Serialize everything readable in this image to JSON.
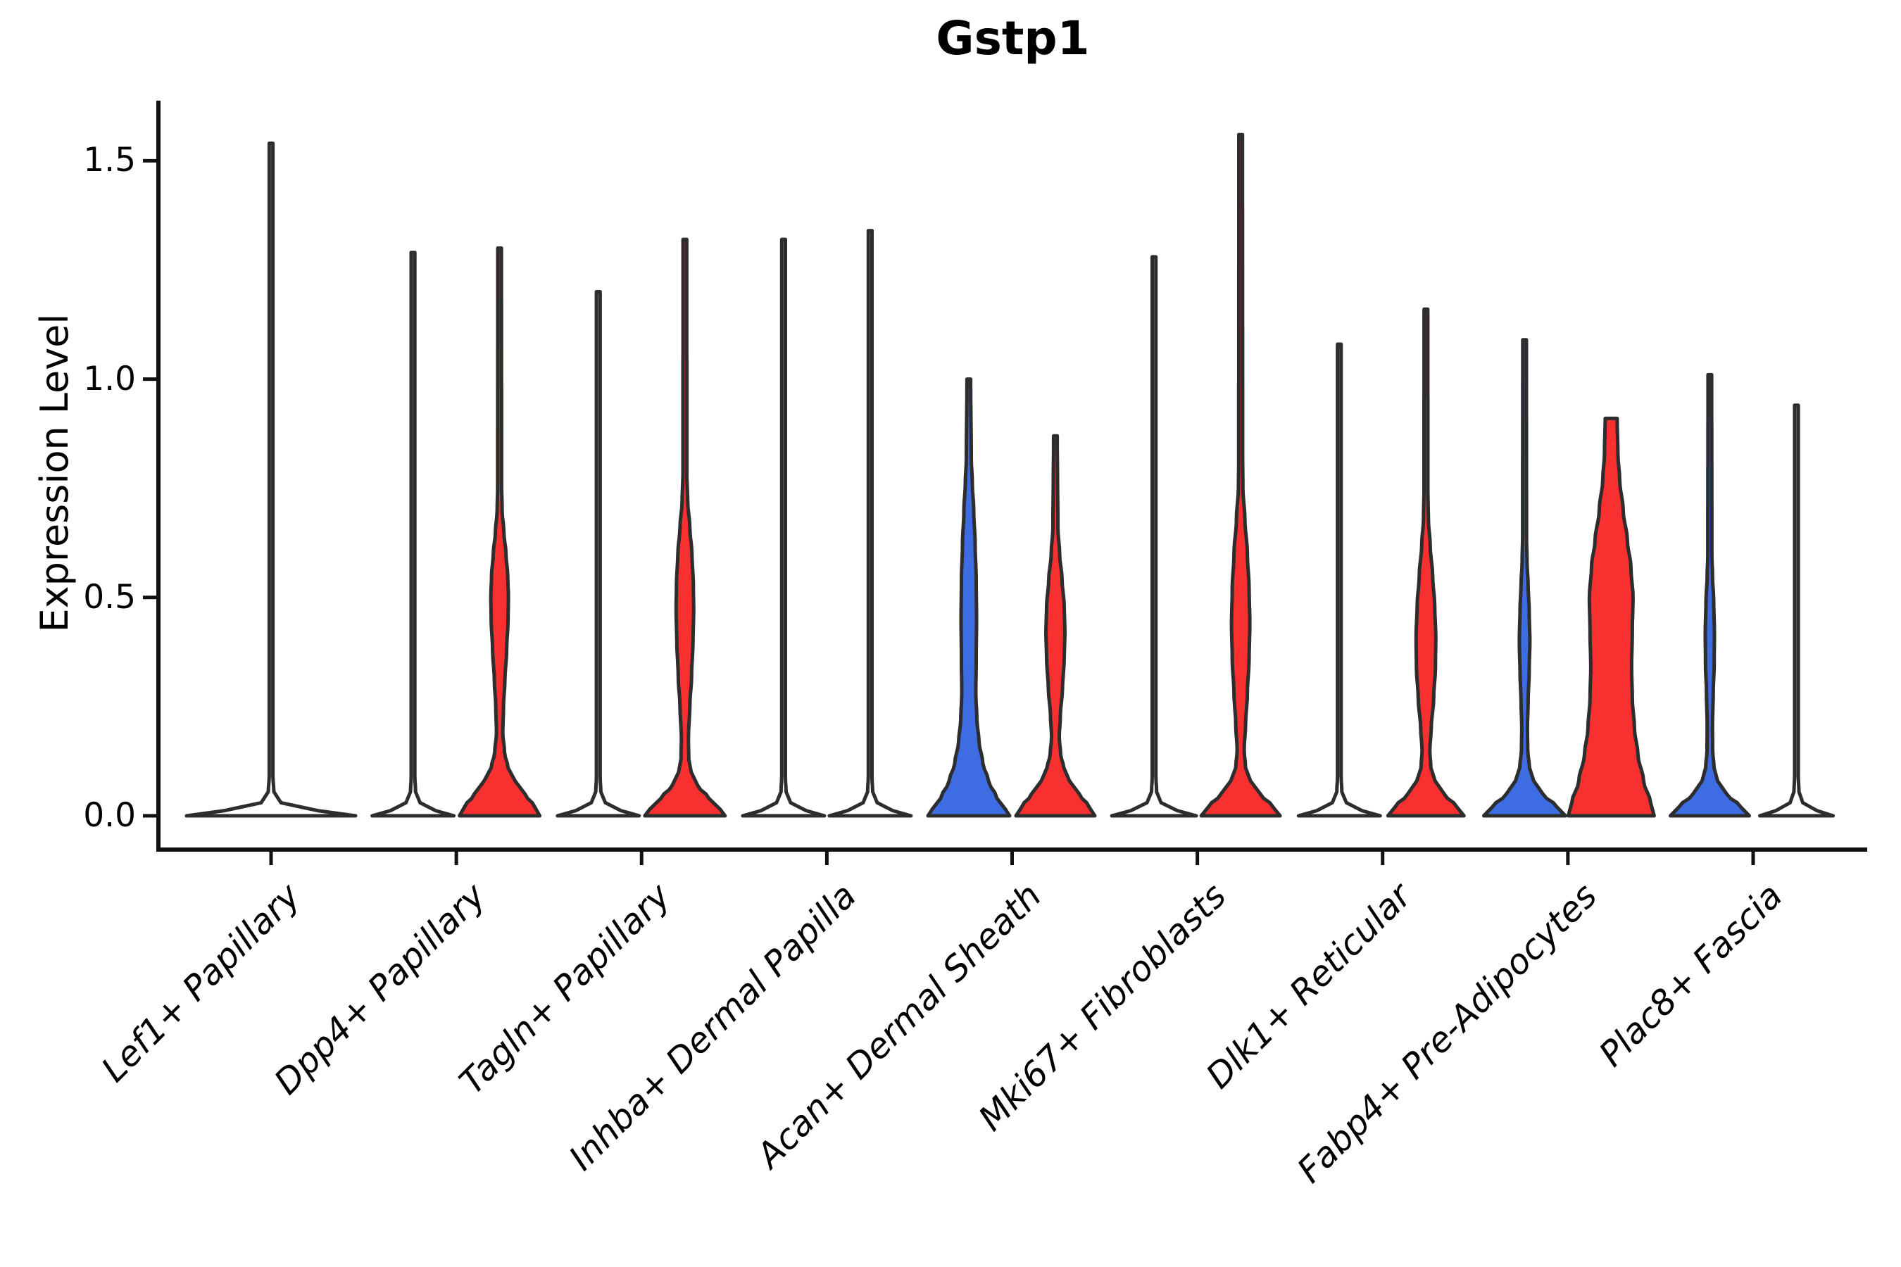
{
  "title": "Gstp1",
  "y_axis": {
    "label": "Expression Level",
    "tick_labels": [
      "0.0",
      "0.5",
      "1.0",
      "1.5"
    ],
    "tick_values": [
      0.0,
      0.5,
      1.0,
      1.5
    ]
  },
  "x_axis": {
    "tick_labels": [
      "Lef1+ Papillary",
      "Dpp4+ Papillary",
      "Tagln+ Papillary",
      "Inhba+ Dermal Papilla",
      "Acan+ Dermal Sheath",
      "Mki67+ Fibroblasts",
      "Dlk1+ Reticular",
      "Fabp4+ Pre-Adipocytes",
      "Plac8+ Fascia"
    ]
  },
  "chart_data": {
    "type": "violin",
    "title": "Gstp1",
    "xlabel": "",
    "ylabel": "Expression Level",
    "ylim": [
      -0.08,
      1.64
    ],
    "yticks": [
      0.0,
      0.5,
      1.0,
      1.5
    ],
    "grid": false,
    "legend": "none",
    "categories": [
      "Lef1+ Papillary",
      "Dpp4+ Papillary",
      "Tagln+ Papillary",
      "Inhba+ Dermal Papilla",
      "Acan+ Dermal Sheath",
      "Mki67+ Fibroblasts",
      "Dlk1+ Reticular",
      "Fabp4+ Pre-Adipocytes",
      "Plac8+ Fascia"
    ],
    "colors": {
      "blue_group": "#3E6CE3",
      "red_group": "#F93030",
      "flat_fill": "#FFFFFF",
      "outline": "#2D2D2D",
      "axis": "#111111"
    },
    "violins": [
      {
        "category_index": 0,
        "category": "Lef1+ Papillary",
        "side": "full",
        "fill": "flat_fill",
        "max_expression": 1.54,
        "clip_top": false,
        "profile": [
          [
            0,
            120
          ],
          [
            0.012,
            66
          ],
          [
            0.03,
            14
          ],
          [
            0.055,
            4
          ],
          [
            0.09,
            2.6
          ],
          [
            1.54,
            2.6
          ]
        ]
      },
      {
        "category_index": 1,
        "category": "Dpp4+ Papillary",
        "side": "left",
        "fill": "flat_fill",
        "max_expression": 1.29,
        "clip_top": false,
        "profile": [
          [
            0,
            58
          ],
          [
            0.012,
            32
          ],
          [
            0.03,
            10
          ],
          [
            0.055,
            3.6
          ],
          [
            0.09,
            2.6
          ],
          [
            1.29,
            2.6
          ]
        ]
      },
      {
        "category_index": 1,
        "category": "Dpp4+ Papillary",
        "side": "right",
        "fill": "red_group",
        "max_expression": 1.3,
        "clip_top": false,
        "profile": [
          [
            0,
            57
          ],
          [
            0.02,
            50
          ],
          [
            0.05,
            36
          ],
          [
            0.08,
            22
          ],
          [
            0.11,
            12
          ],
          [
            0.145,
            7
          ],
          [
            0.19,
            4.5
          ],
          [
            0.25,
            5.5
          ],
          [
            0.31,
            7.5
          ],
          [
            0.38,
            10
          ],
          [
            0.45,
            12
          ],
          [
            0.5,
            12.5
          ],
          [
            0.55,
            11.5
          ],
          [
            0.6,
            9
          ],
          [
            0.65,
            6
          ],
          [
            0.7,
            3.5
          ],
          [
            0.76,
            2.8
          ],
          [
            1.3,
            2.6
          ]
        ]
      },
      {
        "category_index": 2,
        "category": "Tagln+ Papillary",
        "side": "left",
        "fill": "flat_fill",
        "max_expression": 1.2,
        "clip_top": false,
        "profile": [
          [
            0,
            58
          ],
          [
            0.012,
            32
          ],
          [
            0.03,
            10
          ],
          [
            0.055,
            3.6
          ],
          [
            0.09,
            2.6
          ],
          [
            1.2,
            2.6
          ]
        ]
      },
      {
        "category_index": 2,
        "category": "Tagln+ Papillary",
        "side": "right",
        "fill": "red_group",
        "max_expression": 1.32,
        "clip_top": false,
        "profile": [
          [
            0,
            57
          ],
          [
            0.015,
            50
          ],
          [
            0.04,
            34
          ],
          [
            0.07,
            18
          ],
          [
            0.1,
            9
          ],
          [
            0.13,
            5.5
          ],
          [
            0.18,
            5
          ],
          [
            0.25,
            7
          ],
          [
            0.32,
            9.5
          ],
          [
            0.4,
            11.5
          ],
          [
            0.47,
            12.5
          ],
          [
            0.53,
            12
          ],
          [
            0.6,
            10
          ],
          [
            0.66,
            7
          ],
          [
            0.72,
            4
          ],
          [
            0.78,
            2.8
          ],
          [
            1.32,
            2.6
          ]
        ]
      },
      {
        "category_index": 3,
        "category": "Inhba+ Dermal Papilla",
        "side": "left",
        "fill": "flat_fill",
        "max_expression": 1.32,
        "clip_top": false,
        "profile": [
          [
            0,
            58
          ],
          [
            0.012,
            32
          ],
          [
            0.03,
            10
          ],
          [
            0.055,
            3.6
          ],
          [
            0.09,
            2.6
          ],
          [
            1.32,
            2.6
          ]
        ]
      },
      {
        "category_index": 3,
        "category": "Inhba+ Dermal Papilla",
        "side": "right",
        "fill": "flat_fill",
        "max_expression": 1.34,
        "clip_top": false,
        "profile": [
          [
            0,
            58
          ],
          [
            0.012,
            32
          ],
          [
            0.03,
            10
          ],
          [
            0.055,
            3.6
          ],
          [
            0.09,
            2.6
          ],
          [
            1.34,
            2.6
          ]
        ]
      },
      {
        "category_index": 4,
        "category": "Acan+ Dermal Sheath",
        "side": "left",
        "fill": "blue_group",
        "max_expression": 1.0,
        "clip_top": false,
        "profile": [
          [
            0,
            58
          ],
          [
            0.015,
            52
          ],
          [
            0.04,
            40
          ],
          [
            0.08,
            28
          ],
          [
            0.12,
            20
          ],
          [
            0.17,
            14.5
          ],
          [
            0.22,
            11.5
          ],
          [
            0.28,
            10
          ],
          [
            0.36,
            10.5
          ],
          [
            0.45,
            11
          ],
          [
            0.54,
            10.5
          ],
          [
            0.62,
            9
          ],
          [
            0.7,
            7
          ],
          [
            0.76,
            5
          ],
          [
            0.82,
            3.5
          ],
          [
            1.0,
            2.6
          ]
        ]
      },
      {
        "category_index": 4,
        "category": "Acan+ Dermal Sheath",
        "side": "right",
        "fill": "red_group",
        "max_expression": 0.87,
        "clip_top": false,
        "profile": [
          [
            0,
            56
          ],
          [
            0.02,
            48
          ],
          [
            0.05,
            34
          ],
          [
            0.08,
            20
          ],
          [
            0.11,
            12
          ],
          [
            0.14,
            7.5
          ],
          [
            0.18,
            5.5
          ],
          [
            0.23,
            7
          ],
          [
            0.29,
            10
          ],
          [
            0.36,
            12.5
          ],
          [
            0.42,
            13.5
          ],
          [
            0.48,
            12.5
          ],
          [
            0.54,
            9.5
          ],
          [
            0.6,
            6
          ],
          [
            0.66,
            3.5
          ],
          [
            0.87,
            2.6
          ]
        ]
      },
      {
        "category_index": 5,
        "category": "Mki67+ Fibroblasts",
        "side": "left",
        "fill": "flat_fill",
        "max_expression": 1.28,
        "clip_top": false,
        "profile": [
          [
            0,
            60
          ],
          [
            0.012,
            33
          ],
          [
            0.03,
            10
          ],
          [
            0.055,
            3.6
          ],
          [
            0.09,
            2.6
          ],
          [
            1.28,
            2.6
          ]
        ]
      },
      {
        "category_index": 5,
        "category": "Mki67+ Fibroblasts",
        "side": "right",
        "fill": "red_group",
        "max_expression": 1.56,
        "clip_top": false,
        "profile": [
          [
            0,
            56
          ],
          [
            0.02,
            46
          ],
          [
            0.05,
            28
          ],
          [
            0.08,
            14
          ],
          [
            0.11,
            7
          ],
          [
            0.15,
            5
          ],
          [
            0.21,
            7
          ],
          [
            0.28,
            9.5
          ],
          [
            0.36,
            12
          ],
          [
            0.44,
            13
          ],
          [
            0.52,
            12
          ],
          [
            0.6,
            9.5
          ],
          [
            0.68,
            6
          ],
          [
            0.75,
            3.2
          ],
          [
            0.82,
            2.8
          ],
          [
            1.56,
            2.6
          ]
        ]
      },
      {
        "category_index": 6,
        "category": "Dlk1+ Reticular",
        "side": "left",
        "fill": "flat_fill",
        "max_expression": 1.08,
        "clip_top": false,
        "profile": [
          [
            0,
            58
          ],
          [
            0.012,
            32
          ],
          [
            0.03,
            10
          ],
          [
            0.055,
            3.6
          ],
          [
            0.09,
            2.6
          ],
          [
            1.08,
            2.6
          ]
        ]
      },
      {
        "category_index": 6,
        "category": "Dlk1+ Reticular",
        "side": "right",
        "fill": "red_group",
        "max_expression": 1.16,
        "clip_top": false,
        "profile": [
          [
            0,
            54
          ],
          [
            0.02,
            44
          ],
          [
            0.05,
            26
          ],
          [
            0.08,
            13
          ],
          [
            0.11,
            7
          ],
          [
            0.15,
            5.5
          ],
          [
            0.2,
            7.5
          ],
          [
            0.27,
            11
          ],
          [
            0.34,
            13.5
          ],
          [
            0.41,
            14
          ],
          [
            0.48,
            12.5
          ],
          [
            0.55,
            9.5
          ],
          [
            0.62,
            6
          ],
          [
            0.68,
            3.5
          ],
          [
            0.74,
            2.8
          ],
          [
            1.16,
            2.6
          ]
        ]
      },
      {
        "category_index": 7,
        "category": "Fabp4+ Pre-Adipocytes",
        "side": "left",
        "fill": "blue_group",
        "max_expression": 1.09,
        "clip_top": false,
        "profile": [
          [
            0,
            58
          ],
          [
            0.02,
            46
          ],
          [
            0.05,
            26
          ],
          [
            0.08,
            13
          ],
          [
            0.11,
            7
          ],
          [
            0.15,
            4.5
          ],
          [
            0.2,
            4
          ],
          [
            0.26,
            5
          ],
          [
            0.33,
            6.5
          ],
          [
            0.4,
            7.5
          ],
          [
            0.47,
            6.5
          ],
          [
            0.53,
            5
          ],
          [
            0.58,
            3.5
          ],
          [
            0.64,
            2.8
          ],
          [
            1.09,
            2.6
          ]
        ]
      },
      {
        "category_index": 7,
        "category": "Fabp4+ Pre-Adipocytes",
        "side": "right",
        "fill": "red_group",
        "max_expression": 0.91,
        "clip_top": true,
        "profile": [
          [
            0,
            61
          ],
          [
            0.03,
            56
          ],
          [
            0.08,
            46
          ],
          [
            0.14,
            38
          ],
          [
            0.2,
            33
          ],
          [
            0.27,
            30
          ],
          [
            0.34,
            29
          ],
          [
            0.42,
            30
          ],
          [
            0.5,
            31
          ],
          [
            0.57,
            28
          ],
          [
            0.63,
            23
          ],
          [
            0.7,
            17
          ],
          [
            0.77,
            12
          ],
          [
            0.83,
            9.5
          ],
          [
            0.91,
            8.5
          ]
        ]
      },
      {
        "category_index": 8,
        "category": "Plac8+ Fascia",
        "side": "left",
        "fill": "blue_group",
        "max_expression": 1.01,
        "clip_top": false,
        "profile": [
          [
            0,
            56
          ],
          [
            0.02,
            44
          ],
          [
            0.05,
            24
          ],
          [
            0.08,
            11
          ],
          [
            0.11,
            6
          ],
          [
            0.15,
            4
          ],
          [
            0.21,
            3.8
          ],
          [
            0.28,
            4.8
          ],
          [
            0.35,
            6.2
          ],
          [
            0.42,
            6.5
          ],
          [
            0.49,
            5.5
          ],
          [
            0.55,
            3.8
          ],
          [
            0.6,
            2.9
          ],
          [
            1.01,
            2.6
          ]
        ]
      },
      {
        "category_index": 8,
        "category": "Plac8+ Fascia",
        "side": "right",
        "fill": "flat_fill",
        "max_expression": 0.94,
        "clip_top": false,
        "profile": [
          [
            0,
            52
          ],
          [
            0.012,
            29
          ],
          [
            0.03,
            9
          ],
          [
            0.055,
            3.6
          ],
          [
            0.09,
            2.6
          ],
          [
            0.94,
            2.6
          ]
        ]
      }
    ]
  }
}
